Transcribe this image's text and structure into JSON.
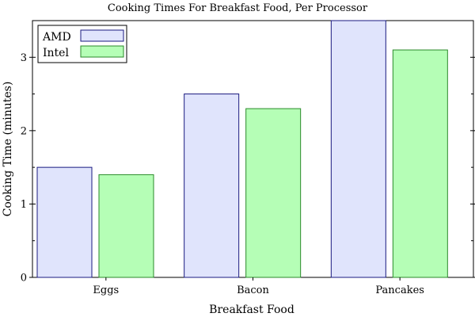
{
  "chart_data": {
    "type": "bar",
    "title": "Cooking Times For Breakfast Food, Per Processor",
    "xlabel": "Breakfast Food",
    "ylabel": "Cooking Time (minutes)",
    "categories": [
      "Eggs",
      "Bacon",
      "Pancakes"
    ],
    "series": [
      {
        "name": "AMD",
        "values": [
          1.5,
          2.5,
          3.5
        ],
        "fill": "#e0e4fc",
        "stroke": "#1a1a80"
      },
      {
        "name": "Intel",
        "values": [
          1.4,
          2.3,
          3.1
        ],
        "fill": "#b5feb6",
        "stroke": "#2a8a2a"
      }
    ],
    "ylim": [
      0,
      3.5
    ],
    "y_ticks": [
      0,
      1,
      2,
      3
    ],
    "y_tick_labels": [
      "0",
      "1",
      "2",
      "3"
    ],
    "y_minor_ticks": [
      0.5,
      1.5,
      2.5
    ],
    "grid": false,
    "legend_position": "top-left"
  }
}
